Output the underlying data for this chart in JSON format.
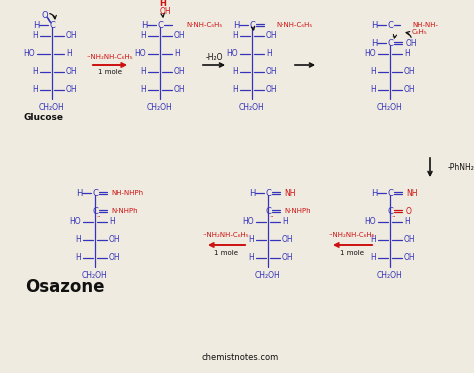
{
  "bg_color": "#f0ebe0",
  "blue": "#3333bb",
  "red": "#cc1111",
  "black": "#111111",
  "watermark": "chemistnotes.com",
  "osazone_label": "Osazone",
  "glucose_label": "Glucose",
  "figw": 4.74,
  "figh": 3.73,
  "dpi": 100
}
